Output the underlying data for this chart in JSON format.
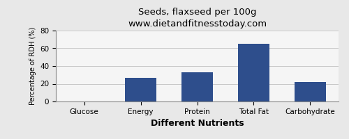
{
  "title": "Seeds, flaxseed per 100g",
  "subtitle": "www.dietandfitnesstoday.com",
  "xlabel": "Different Nutrients",
  "ylabel": "Percentage of RDH (%)",
  "categories": [
    "Glucose",
    "Energy",
    "Protein",
    "Total Fat",
    "Carbohydrate"
  ],
  "values": [
    0,
    27,
    33,
    65,
    22
  ],
  "bar_color": "#2e4e8c",
  "ylim": [
    0,
    80
  ],
  "yticks": [
    0,
    20,
    40,
    60,
    80
  ],
  "background_color": "#e8e8e8",
  "plot_bg_color": "#f5f5f5",
  "title_fontsize": 9.5,
  "subtitle_fontsize": 8,
  "xlabel_fontsize": 9,
  "ylabel_fontsize": 7,
  "tick_fontsize": 7.5,
  "bar_width": 0.55
}
